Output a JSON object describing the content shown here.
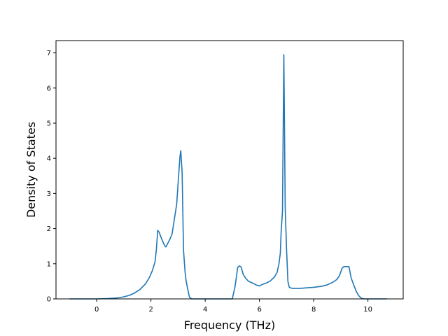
{
  "chart_data": {
    "type": "line",
    "title": "",
    "xlabel": "Frequency (THz)",
    "ylabel": "Density of States",
    "xlim": [
      -1.5,
      11.3
    ],
    "ylim": [
      0,
      7.35
    ],
    "xticks": [
      0,
      2,
      4,
      6,
      8,
      10
    ],
    "yticks": [
      0,
      1,
      2,
      3,
      4,
      5,
      6,
      7
    ],
    "grid": false,
    "legend": "none",
    "series": [
      {
        "color": "#1f77b4",
        "points": [
          [
            -1.0,
            0.0
          ],
          [
            -0.5,
            0.0
          ],
          [
            0.0,
            0.0
          ],
          [
            0.4,
            0.01
          ],
          [
            0.8,
            0.03
          ],
          [
            1.0,
            0.06
          ],
          [
            1.2,
            0.1
          ],
          [
            1.4,
            0.17
          ],
          [
            1.6,
            0.27
          ],
          [
            1.8,
            0.43
          ],
          [
            1.95,
            0.62
          ],
          [
            2.05,
            0.8
          ],
          [
            2.15,
            1.05
          ],
          [
            2.2,
            1.4
          ],
          [
            2.25,
            1.95
          ],
          [
            2.3,
            1.9
          ],
          [
            2.4,
            1.7
          ],
          [
            2.5,
            1.52
          ],
          [
            2.55,
            1.48
          ],
          [
            2.6,
            1.55
          ],
          [
            2.7,
            1.7
          ],
          [
            2.78,
            1.85
          ],
          [
            2.85,
            2.2
          ],
          [
            2.95,
            2.7
          ],
          [
            3.02,
            3.5
          ],
          [
            3.07,
            4.05
          ],
          [
            3.1,
            4.22
          ],
          [
            3.15,
            3.6
          ],
          [
            3.2,
            1.4
          ],
          [
            3.26,
            0.75
          ],
          [
            3.3,
            0.5
          ],
          [
            3.35,
            0.3
          ],
          [
            3.42,
            0.05
          ],
          [
            3.5,
            0.0
          ],
          [
            4.0,
            0.0
          ],
          [
            4.5,
            0.0
          ],
          [
            5.0,
            0.0
          ],
          [
            5.1,
            0.35
          ],
          [
            5.2,
            0.9
          ],
          [
            5.27,
            0.94
          ],
          [
            5.33,
            0.9
          ],
          [
            5.4,
            0.7
          ],
          [
            5.5,
            0.58
          ],
          [
            5.6,
            0.5
          ],
          [
            5.75,
            0.45
          ],
          [
            5.9,
            0.39
          ],
          [
            6.0,
            0.37
          ],
          [
            6.1,
            0.41
          ],
          [
            6.25,
            0.45
          ],
          [
            6.4,
            0.51
          ],
          [
            6.55,
            0.62
          ],
          [
            6.65,
            0.75
          ],
          [
            6.72,
            1.0
          ],
          [
            6.77,
            1.3
          ],
          [
            6.8,
            1.9
          ],
          [
            6.85,
            2.5
          ],
          [
            6.9,
            6.95
          ],
          [
            6.95,
            2.6
          ],
          [
            7.0,
            1.4
          ],
          [
            7.05,
            0.5
          ],
          [
            7.1,
            0.33
          ],
          [
            7.2,
            0.3
          ],
          [
            7.5,
            0.3
          ],
          [
            8.0,
            0.33
          ],
          [
            8.3,
            0.36
          ],
          [
            8.5,
            0.4
          ],
          [
            8.7,
            0.47
          ],
          [
            8.85,
            0.55
          ],
          [
            8.95,
            0.66
          ],
          [
            9.05,
            0.88
          ],
          [
            9.12,
            0.92
          ],
          [
            9.3,
            0.92
          ],
          [
            9.38,
            0.6
          ],
          [
            9.45,
            0.45
          ],
          [
            9.55,
            0.25
          ],
          [
            9.65,
            0.1
          ],
          [
            9.75,
            0.02
          ],
          [
            9.85,
            0.0
          ],
          [
            10.2,
            0.0
          ],
          [
            10.7,
            0.0
          ]
        ]
      }
    ]
  }
}
